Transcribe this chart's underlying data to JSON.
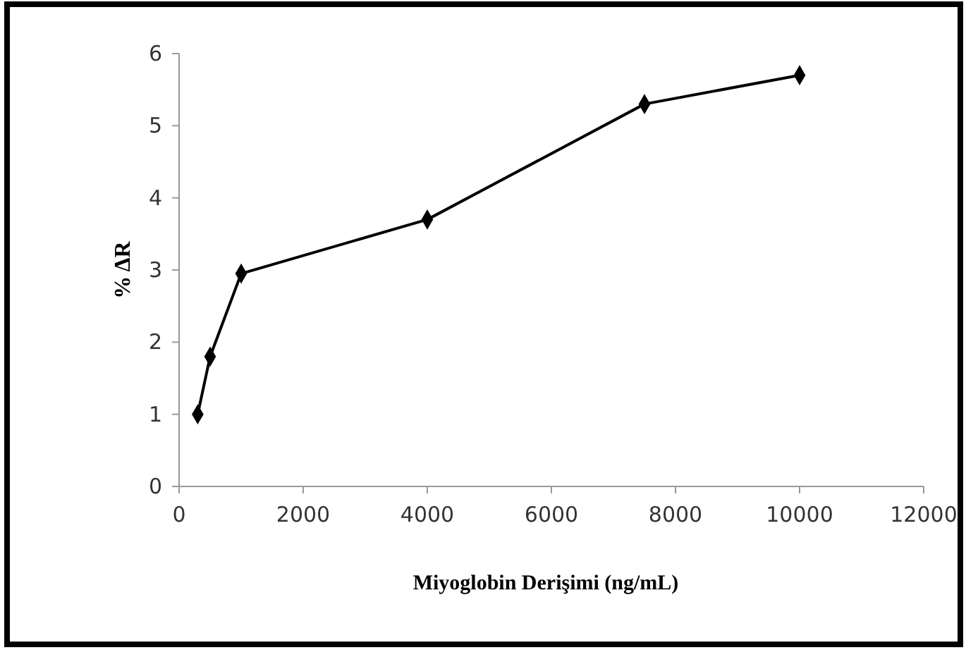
{
  "chart_data": {
    "type": "line",
    "xlabel": "Miyoglobin Derişimi (ng/mL)",
    "ylabel": "% ΔR",
    "x": [
      300,
      500,
      1000,
      4000,
      7500,
      10000
    ],
    "series": [
      {
        "color": "#000000",
        "values": [
          1,
          1.8,
          2.95,
          3.7,
          5.3,
          5.7
        ]
      }
    ],
    "xlim": [
      0,
      12000
    ],
    "xticks": [
      0,
      2000,
      4000,
      6000,
      8000,
      10000,
      12000
    ],
    "ylim": [
      0,
      6
    ],
    "yticks": [
      0,
      1,
      2,
      3,
      4,
      5,
      6
    ],
    "grid": false,
    "marker": "diamond",
    "line_style": "solid"
  }
}
